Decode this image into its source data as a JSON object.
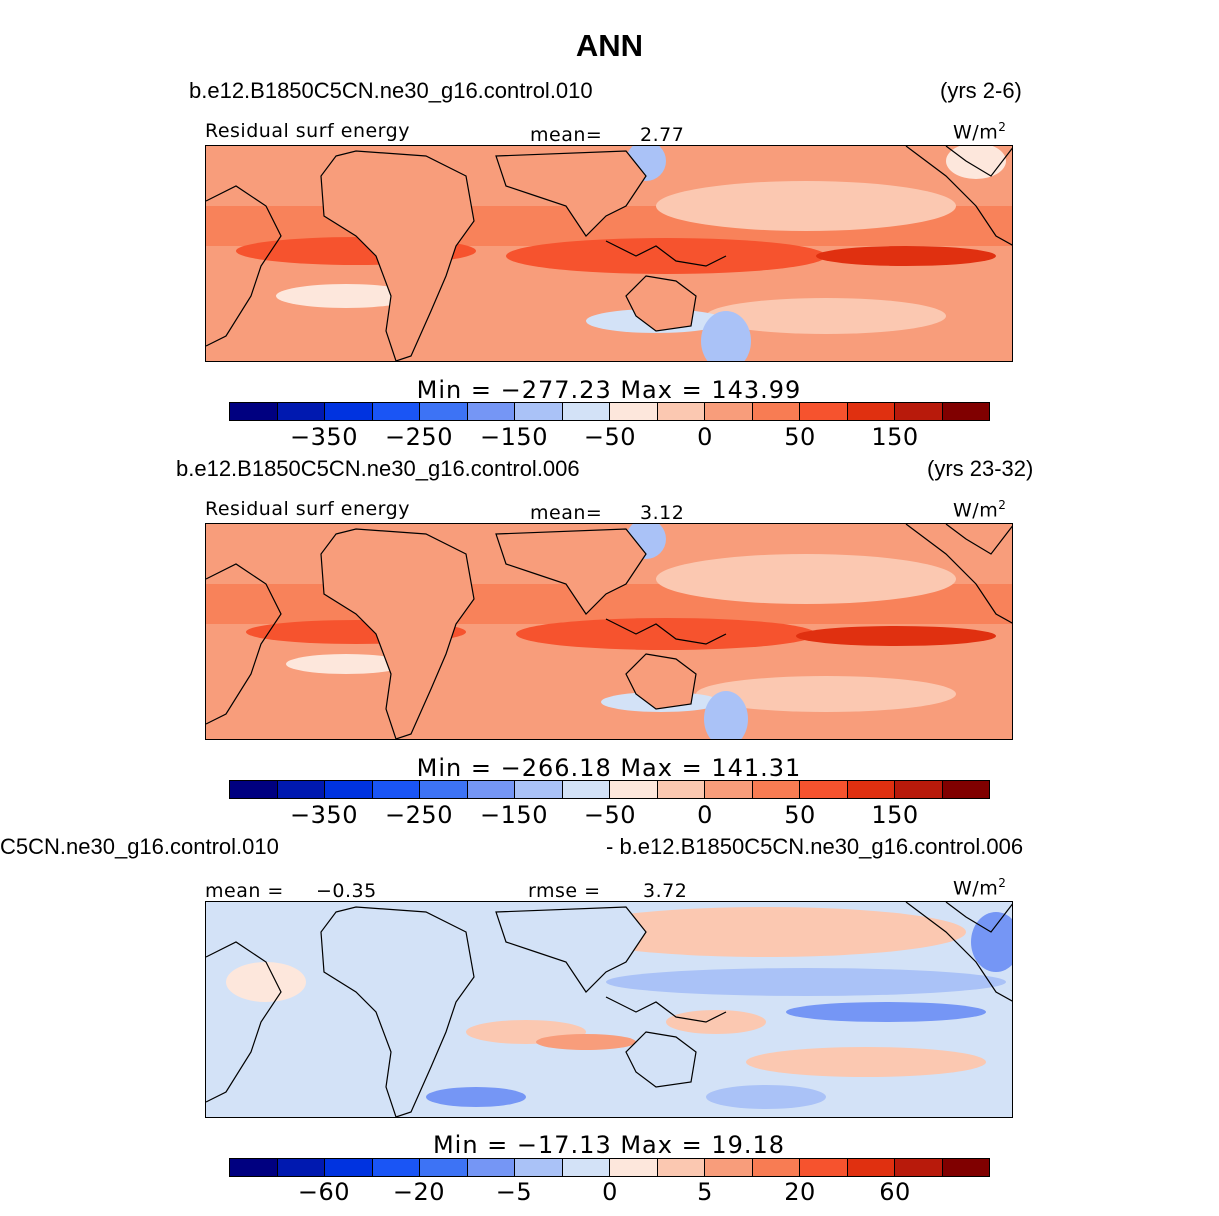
{
  "title": "ANN",
  "colors": [
    "#000080",
    "#0019b0",
    "#0033e0",
    "#1a55f5",
    "#3d73f5",
    "#7596f5",
    "#aac2f7",
    "#d3e2f7",
    "#fde7dc",
    "#fbc8b1",
    "#f89d7b",
    "#f87c53",
    "#f6532e",
    "#e03010",
    "#b81a0b",
    "#800000"
  ],
  "panels": [
    {
      "case_name": "b.e12.B1850C5CN.ne30_g16.control.010",
      "years": "(yrs 2-6)",
      "left_label": "Residual surf energy",
      "stat_label": "mean=",
      "stat_value": "2.77",
      "units": "W/m",
      "units_sup": "2",
      "minmax": "Min = −277.23 Max = 143.99",
      "ticks": [
        "−350",
        "−250",
        "−150",
        "−50",
        "0",
        "50",
        "150"
      ]
    },
    {
      "case_name": "b.e12.B1850C5CN.ne30_g16.control.006",
      "years": "(yrs 23-32)",
      "left_label": "Residual surf energy",
      "stat_label": "mean=",
      "stat_value": "3.12",
      "units": "W/m",
      "units_sup": "2",
      "minmax": "Min = −266.18 Max = 141.31",
      "ticks": [
        "−350",
        "−250",
        "−150",
        "−50",
        "0",
        "50",
        "150"
      ]
    },
    {
      "case_name_left": "C5CN.ne30_g16.control.010",
      "case_name_right": "- b.e12.B1850C5CN.ne30_g16.control.006",
      "mean_label": "mean =",
      "mean_value": "−0.35",
      "rmse_label": "rmse =",
      "rmse_value": "3.72",
      "units": "W/m",
      "units_sup": "2",
      "minmax": "Min = −17.13 Max =  19.18",
      "ticks": [
        "−60",
        "−20",
        "−5",
        "0",
        "5",
        "20",
        "60"
      ]
    }
  ]
}
